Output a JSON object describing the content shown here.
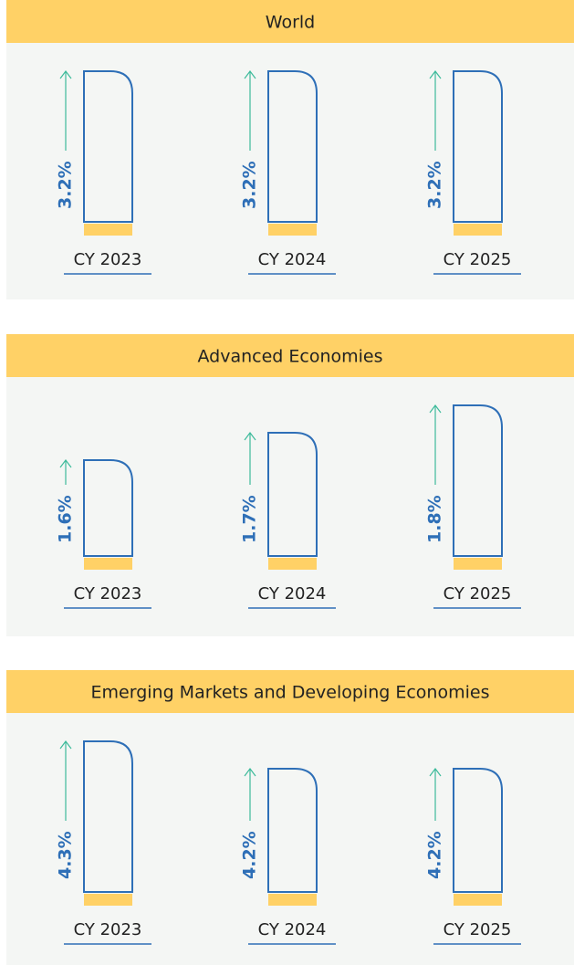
{
  "chart_data": [
    {
      "type": "bar",
      "title": "World",
      "categories": [
        "CY 2023",
        "CY 2024",
        "CY 2025"
      ],
      "values": [
        3.2,
        3.2,
        3.2
      ],
      "value_labels": [
        "3.2%",
        "3.2%",
        "3.2%"
      ],
      "ylim": [
        2.65,
        3.2
      ],
      "color": "#2e6fb7",
      "header_color": "#ffd166",
      "arrow_color": "#3dbb9b"
    },
    {
      "type": "bar",
      "title": "Advanced Economies",
      "categories": [
        "CY 2023",
        "CY 2024",
        "CY 2025"
      ],
      "values": [
        1.6,
        1.7,
        1.8
      ],
      "value_labels": [
        "1.6%",
        "1.7%",
        "1.8%"
      ],
      "ylim": [
        1.25,
        1.8
      ],
      "color": "#2e6fb7",
      "header_color": "#ffd166",
      "arrow_color": "#3dbb9b"
    },
    {
      "type": "bar",
      "title": "Emerging Markets and Developing Economies",
      "categories": [
        "CY 2023",
        "CY 2024",
        "CY 2025"
      ],
      "values": [
        4.3,
        4.2,
        4.2
      ],
      "value_labels": [
        "4.3%",
        "4.2%",
        "4.2%"
      ],
      "ylim": [
        3.75,
        4.3
      ],
      "color": "#2e6fb7",
      "header_color": "#ffd166",
      "arrow_color": "#3dbb9b"
    }
  ]
}
